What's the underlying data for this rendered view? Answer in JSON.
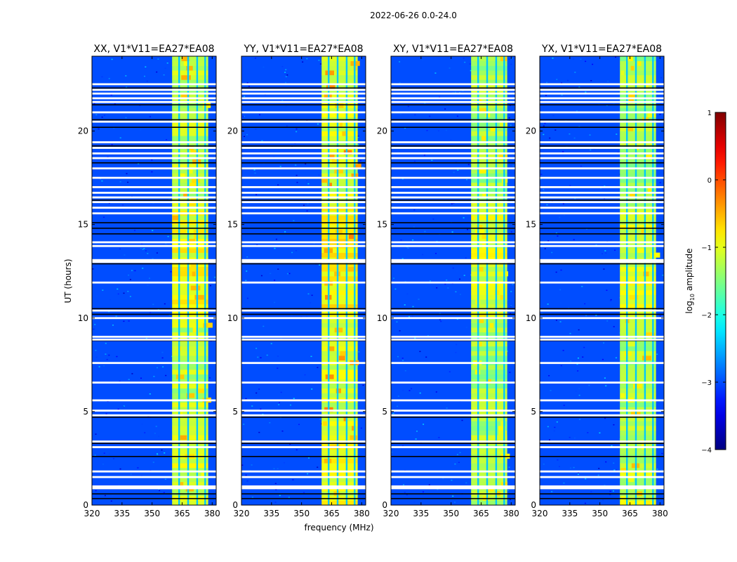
{
  "figure": {
    "suptitle": "2022-06-26 0.0-24.0",
    "ylabel": "UT (hours)",
    "xlabel": "frequency (MHz)"
  },
  "chart_data": {
    "type": "heatmap",
    "title": "2022-06-26 0.0-24.0",
    "xlabel": "frequency (MHz)",
    "ylabel": "UT (hours)",
    "xlim": [
      320,
      382
    ],
    "ylim": [
      0,
      24
    ],
    "xticks": [
      320,
      335,
      350,
      365,
      380
    ],
    "yticks": [
      0,
      5,
      10,
      15,
      20
    ],
    "panels": [
      {
        "title": "XX, V1*V11=EA27*EA08",
        "mid_level": -1.2,
        "hot_level": -0.7
      },
      {
        "title": "YY, V1*V11=EA27*EA08",
        "mid_level": -1.1,
        "hot_level": -0.5
      },
      {
        "title": "XY, V1*V11=EA27*EA08",
        "mid_level": -1.3,
        "hot_level": -0.9
      },
      {
        "title": "YX, V1*V11=EA27*EA08",
        "mid_level": -1.3,
        "hot_level": -0.8
      }
    ],
    "band": {
      "start_mhz": 360,
      "end_mhz": 378,
      "description": "high-amplitude RFI band"
    },
    "band_gaps_mhz": [
      363.5,
      368,
      372.5,
      376.5
    ],
    "background_level": -3.0,
    "flag_rows_white_ut": [
      0.9,
      1.0,
      1.5,
      1.8,
      3.1,
      3.4,
      4.8,
      5.05,
      5.6,
      6.55,
      7.6,
      8.85,
      9.0,
      10.0,
      10.4,
      11.9,
      13.0,
      13.1,
      13.85,
      14.05,
      15.6,
      15.9,
      16.2,
      16.45,
      16.7,
      17.0,
      17.5,
      18.0,
      18.55,
      18.8,
      19.1,
      19.4,
      20.5,
      21.0,
      21.55,
      21.75,
      22.0,
      22.2,
      22.5
    ],
    "flag_rows_black_ut": [
      0.35,
      0.6,
      2.6,
      3.3,
      4.7,
      8.8,
      10.2,
      10.5,
      12.9,
      14.5,
      14.8,
      15.1,
      16.3,
      18.3,
      19.2,
      20.2,
      20.6,
      21.4,
      22.3
    ],
    "colorbar": {
      "label_prefix": "log",
      "label_sub": "10",
      "label_suffix": " amplitude",
      "vmin": -4,
      "vmax": 1,
      "ticks": [
        "1",
        "0",
        "−1",
        "−2",
        "−3",
        "−4"
      ],
      "tick_values": [
        1,
        0,
        -1,
        -2,
        -3,
        -4
      ],
      "colormap": "jet"
    }
  }
}
